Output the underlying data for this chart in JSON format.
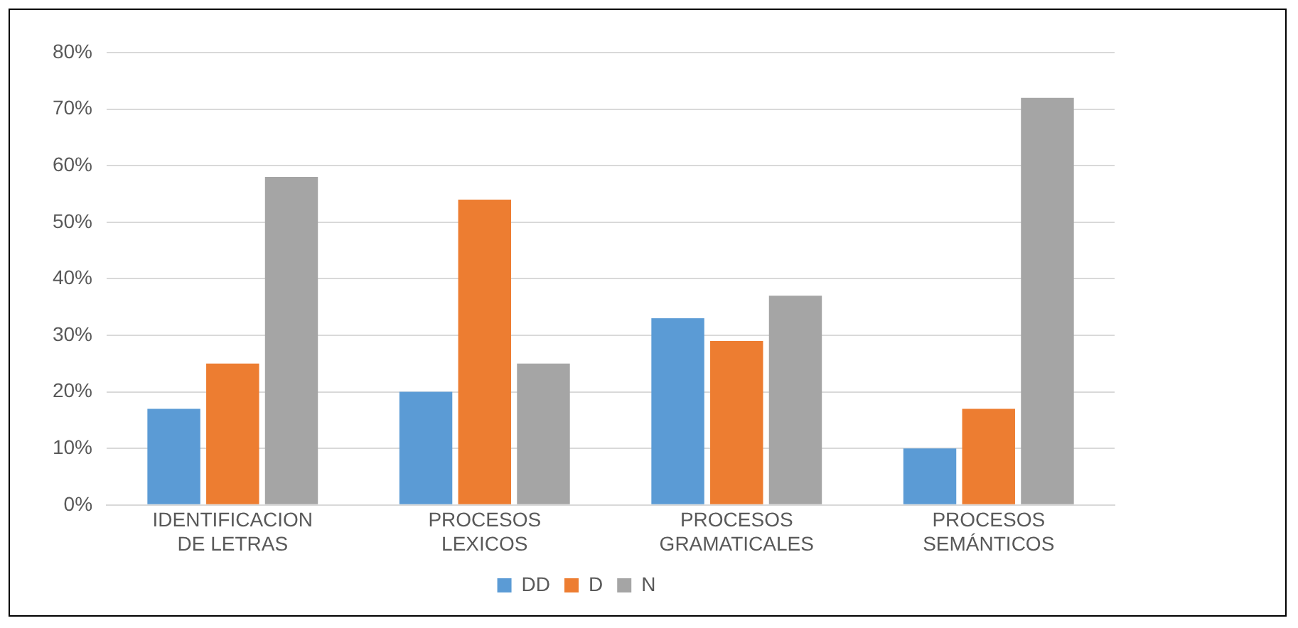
{
  "chart_data": {
    "type": "bar",
    "categories": [
      "IDENTIFICACION DE LETRAS",
      "PROCESOS LEXICOS",
      "PROCESOS GRAMATICALES",
      "PROCESOS SEMÁNTICOS"
    ],
    "series": [
      {
        "name": "DD",
        "color": "#5b9bd5",
        "values": [
          17,
          20,
          33,
          10
        ]
      },
      {
        "name": "D",
        "color": "#ed7d31",
        "values": [
          25,
          54,
          29,
          17
        ]
      },
      {
        "name": "N",
        "color": "#a5a5a5",
        "values": [
          58,
          25,
          37,
          72
        ]
      }
    ],
    "ylim": [
      0,
      80
    ],
    "yticks": [
      {
        "value": 0,
        "label": "0%"
      },
      {
        "value": 10,
        "label": "10%"
      },
      {
        "value": 20,
        "label": "20%"
      },
      {
        "value": 30,
        "label": "30%"
      },
      {
        "value": 40,
        "label": "40%"
      },
      {
        "value": 50,
        "label": "50%"
      },
      {
        "value": 60,
        "label": "60%"
      },
      {
        "value": 70,
        "label": "70%"
      },
      {
        "value": 80,
        "label": "80%"
      }
    ],
    "grid": "y",
    "legend": "bottom"
  }
}
